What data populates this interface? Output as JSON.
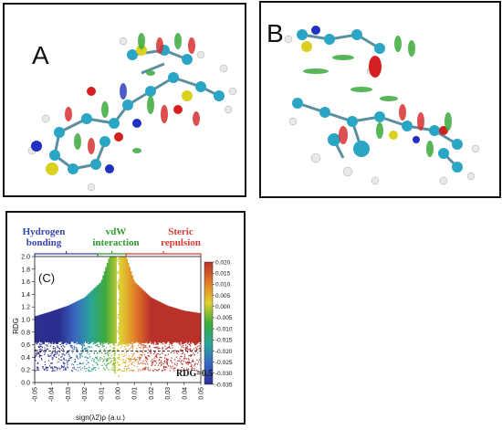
{
  "panel_a": {
    "label": "A"
  },
  "panel_b": {
    "label": "B"
  },
  "panel_c": {
    "label": "(C)",
    "regions": [
      {
        "text": "Hydrogen bonding",
        "color": "#3645b0"
      },
      {
        "text": "vdW interaction",
        "color": "#2f9a2f"
      },
      {
        "text": "Steric repulsion",
        "color": "#d83a35"
      }
    ],
    "threshold_label": "RDG=0.5"
  },
  "chart_data": {
    "type": "scatter",
    "xlabel": "sign(λ2)ρ (a.u.)",
    "ylabel": "RDG",
    "xlim": [
      -0.05,
      0.05
    ],
    "ylim": [
      0,
      2.0
    ],
    "x_ticks": [
      "-0.05",
      "-0.04",
      "-0.03",
      "-0.02",
      "-0.01",
      "0.00",
      "0.01",
      "0.02",
      "0.03",
      "0.04",
      "0.05"
    ],
    "y_ticks": [
      "0.0",
      "0.2",
      "0.4",
      "0.6",
      "0.8",
      "1.0",
      "1.2",
      "1.4",
      "1.6",
      "1.8",
      "2.0"
    ],
    "threshold": {
      "y": 0.5,
      "style": "dashed"
    },
    "colorbar": {
      "range": [
        -0.035,
        0.02
      ],
      "ticks": [
        "0.020",
        "0.015",
        "0.010",
        "0.005",
        "0.000",
        "-0.005",
        "-0.010",
        "-0.015",
        "-0.020",
        "-0.025",
        "-0.030",
        "-0.035"
      ],
      "colors": [
        "#2b2f8f",
        "#3a66c0",
        "#2aa39a",
        "#3caa3c",
        "#e0d030",
        "#e07a28",
        "#b8322a"
      ]
    },
    "envelope": [
      {
        "x": -0.05,
        "rdg": 1.05
      },
      {
        "x": -0.04,
        "rdg": 1.13
      },
      {
        "x": -0.03,
        "rdg": 1.22
      },
      {
        "x": -0.02,
        "rdg": 1.35
      },
      {
        "x": -0.01,
        "rdg": 1.6
      },
      {
        "x": -0.005,
        "rdg": 2.0
      },
      {
        "x": 0.005,
        "rdg": 2.0
      },
      {
        "x": 0.01,
        "rdg": 1.6
      },
      {
        "x": 0.02,
        "rdg": 1.35
      },
      {
        "x": 0.03,
        "rdg": 1.22
      },
      {
        "x": 0.04,
        "rdg": 1.14
      },
      {
        "x": 0.05,
        "rdg": 1.1
      }
    ],
    "spikes": [
      {
        "x": -0.002,
        "rdg_min": 0.15
      },
      {
        "x": 0.0005,
        "rdg_min": 0.1
      }
    ]
  }
}
